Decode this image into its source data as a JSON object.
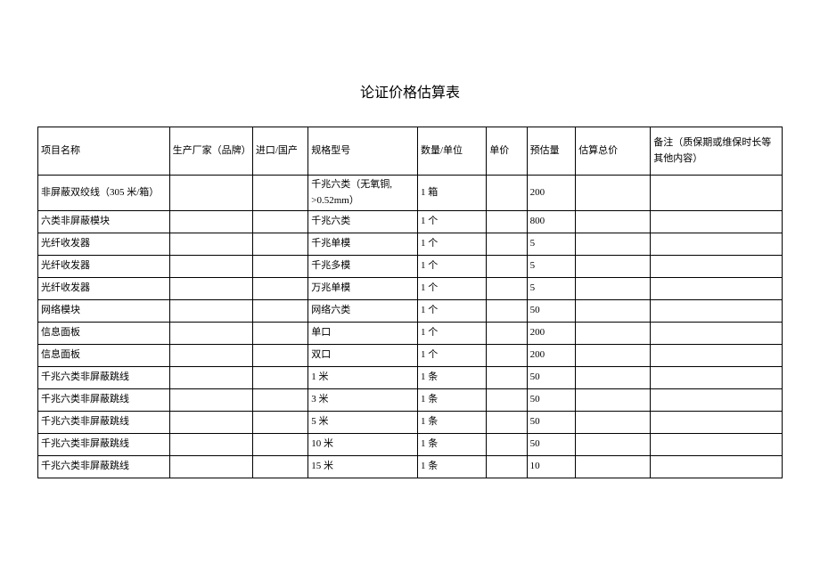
{
  "title": "论证价格估算表",
  "columns": [
    "项目名称",
    "生产厂家（品牌）",
    "进口/国产",
    "规格型号",
    "数量/单位",
    "单价",
    "预估量",
    "估算总价",
    "备注（质保期或维保时长等其他内容）"
  ],
  "rows": [
    {
      "name": "非屏蔽双绞线（305 米/箱）",
      "maker": "",
      "origin": "",
      "spec": "千兆六类（无氧铜, >0.52mm）",
      "qty": "1 箱",
      "price": "",
      "est": "200",
      "total": "",
      "note": ""
    },
    {
      "name": "六类非屏蔽模块",
      "maker": "",
      "origin": "",
      "spec": "千兆六类",
      "qty": "1 个",
      "price": "",
      "est": "800",
      "total": "",
      "note": ""
    },
    {
      "name": "光纤收发器",
      "maker": "",
      "origin": "",
      "spec": "千兆单模",
      "qty": "1 个",
      "price": "",
      "est": "5",
      "total": "",
      "note": ""
    },
    {
      "name": "光纤收发器",
      "maker": "",
      "origin": "",
      "spec": "千兆多模",
      "qty": "1 个",
      "price": "",
      "est": "5",
      "total": "",
      "note": ""
    },
    {
      "name": "光纤收发器",
      "maker": "",
      "origin": "",
      "spec": "万兆单模",
      "qty": "1 个",
      "price": "",
      "est": "5",
      "total": "",
      "note": ""
    },
    {
      "name": "网络模块",
      "maker": "",
      "origin": "",
      "spec": "网络六类",
      "qty": "1 个",
      "price": "",
      "est": "50",
      "total": "",
      "note": ""
    },
    {
      "name": "信息面板",
      "maker": "",
      "origin": "",
      "spec": "单口",
      "qty": "1 个",
      "price": "",
      "est": "200",
      "total": "",
      "note": ""
    },
    {
      "name": "信息面板",
      "maker": "",
      "origin": "",
      "spec": "双口",
      "qty": "1 个",
      "price": "",
      "est": "200",
      "total": "",
      "note": ""
    },
    {
      "name": "千兆六类非屏蔽跳线",
      "maker": "",
      "origin": "",
      "spec": "1 米",
      "qty": "1 条",
      "price": "",
      "est": "50",
      "total": "",
      "note": ""
    },
    {
      "name": "千兆六类非屏蔽跳线",
      "maker": "",
      "origin": "",
      "spec": "3 米",
      "qty": "1 条",
      "price": "",
      "est": "50",
      "total": "",
      "note": ""
    },
    {
      "name": "千兆六类非屏蔽跳线",
      "maker": "",
      "origin": "",
      "spec": "5 米",
      "qty": "1 条",
      "price": "",
      "est": "50",
      "total": "",
      "note": ""
    },
    {
      "name": "千兆六类非屏蔽跳线",
      "maker": "",
      "origin": "",
      "spec": "10 米",
      "qty": "1 条",
      "price": "",
      "est": "50",
      "total": "",
      "note": ""
    },
    {
      "name": "千兆六类非屏蔽跳线",
      "maker": "",
      "origin": "",
      "spec": "15 米",
      "qty": "1 条",
      "price": "",
      "est": "10",
      "total": "",
      "note": ""
    }
  ],
  "colors": {
    "background": "#ffffff",
    "text": "#000000",
    "border": "#000000"
  },
  "fonts": {
    "title_size": 16,
    "body_size": 11
  }
}
